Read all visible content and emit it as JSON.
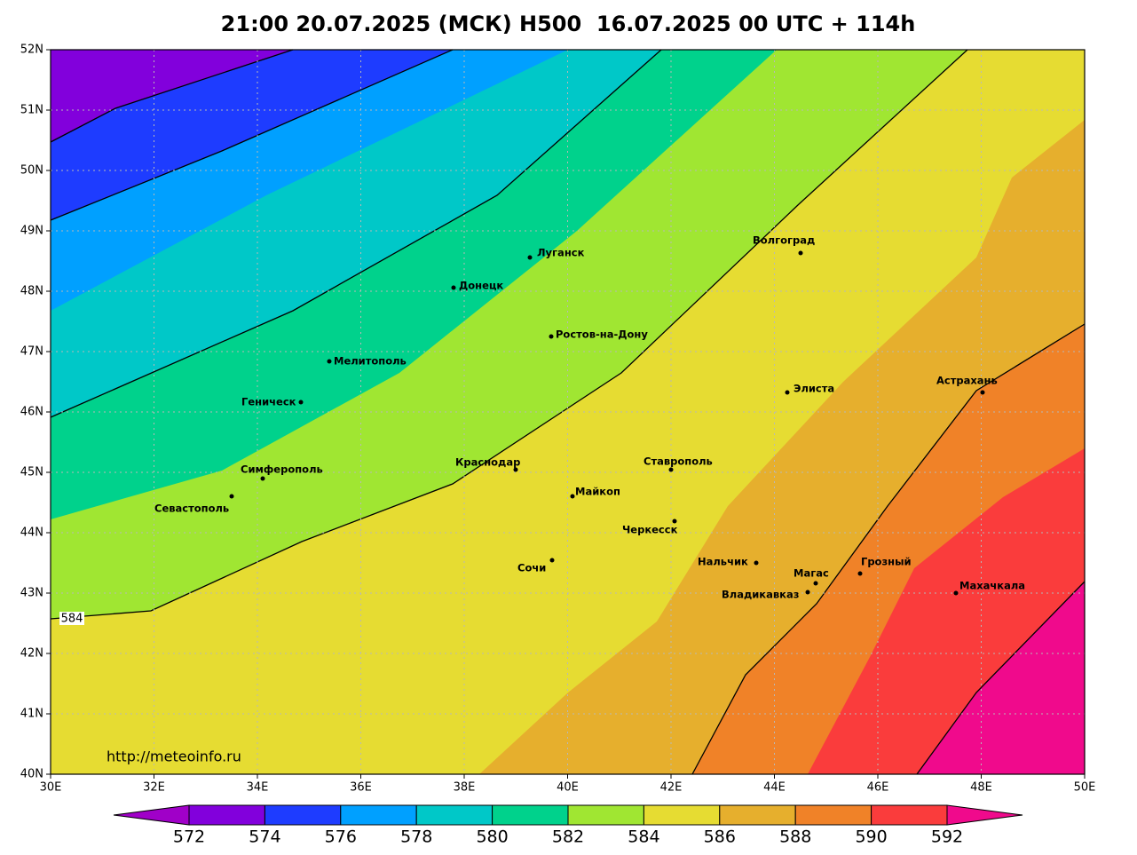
{
  "title": "21:00 20.07.2025 (МСК) H500  16.07.2025 00 UTC + 114h",
  "lat_ticks": [
    {
      "value": 52,
      "label": "52N"
    },
    {
      "value": 51,
      "label": "51N"
    },
    {
      "value": 50,
      "label": "50N"
    },
    {
      "value": 49,
      "label": "49N"
    },
    {
      "value": 48,
      "label": "48N"
    },
    {
      "value": 47,
      "label": "47N"
    },
    {
      "value": 46,
      "label": "46N"
    },
    {
      "value": 45,
      "label": "45N"
    },
    {
      "value": 44,
      "label": "44N"
    },
    {
      "value": 43,
      "label": "43N"
    },
    {
      "value": 42,
      "label": "42N"
    },
    {
      "value": 41,
      "label": "41N"
    },
    {
      "value": 40,
      "label": "40N"
    }
  ],
  "lon_ticks": [
    {
      "value": 30,
      "label": "30E"
    },
    {
      "value": 32,
      "label": "32E"
    },
    {
      "value": 34,
      "label": "34E"
    },
    {
      "value": 36,
      "label": "36E"
    },
    {
      "value": 38,
      "label": "38E"
    },
    {
      "value": 40,
      "label": "40E"
    },
    {
      "value": 42,
      "label": "42E"
    },
    {
      "value": 44,
      "label": "44E"
    },
    {
      "value": 46,
      "label": "46E"
    },
    {
      "value": 48,
      "label": "48E"
    },
    {
      "value": 50,
      "label": "50E"
    }
  ],
  "cities": [
    "Волгоград",
    "Луганск",
    "Донецк",
    "Ростов-на-Дону",
    "Мелитополь",
    "Геническ",
    "Элиста",
    "Астрахань",
    "Симферополь",
    "Севастополь",
    "Краснодар",
    "Ставрополь",
    "Майкоп",
    "Черкесск",
    "Нальчик",
    "Сочи",
    "Магас",
    "Грозный",
    "Владикавказ",
    "Махачкала"
  ],
  "contour_label": 584,
  "url": "http://meteoinfo.ru",
  "colorbar": {
    "levels": [
      572,
      574,
      576,
      578,
      580,
      582,
      584,
      586,
      588,
      590,
      592
    ],
    "colors": [
      "#a000c8",
      "#8200dc",
      "#1e3cff",
      "#00a0ff",
      "#00c8c8",
      "#00d28c",
      "#a0e632",
      "#e6dc32",
      "#e6af2d",
      "#f08228",
      "#fa3c3c",
      "#f00a8c"
    ]
  }
}
